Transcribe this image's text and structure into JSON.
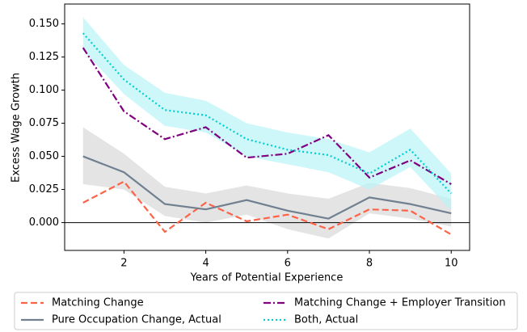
{
  "chart_data": {
    "type": "line",
    "xlabel": "Years of Potential Experience",
    "ylabel": "Excess Wage Growth",
    "x": [
      1,
      2,
      3,
      4,
      5,
      6,
      7,
      8,
      9,
      10
    ],
    "xlim": [
      0.55,
      10.45
    ],
    "xticks": [
      2,
      4,
      6,
      8,
      10
    ],
    "ylim": [
      -0.021,
      0.165
    ],
    "yticks": [
      {
        "value": 0,
        "label": "0.000"
      },
      {
        "value": 0.025,
        "label": "0.025"
      },
      {
        "value": 0.05,
        "label": "0.050"
      },
      {
        "value": 0.075,
        "label": "0.075"
      },
      {
        "value": 0.1,
        "label": "0.100"
      },
      {
        "value": 0.125,
        "label": "0.125"
      },
      {
        "value": 0.15,
        "label": "0.150"
      }
    ],
    "hline": 0,
    "legend": "below",
    "series": [
      {
        "name": "Matching Change",
        "color": "#ff6347",
        "dash": "dashed",
        "values": [
          0.015,
          0.031,
          -0.007,
          0.015,
          0.001,
          0.006,
          -0.005,
          0.01,
          0.009,
          -0.009
        ]
      },
      {
        "name": "Pure Occupation Change, Actual",
        "color": "#708090",
        "dash": "solid",
        "band_color": "#d9d9d9",
        "values": [
          0.05,
          0.038,
          0.014,
          0.01,
          0.017,
          0.009,
          0.003,
          0.019,
          0.014,
          0.007
        ],
        "lower": [
          0.029,
          0.025,
          0.005,
          0.0,
          0.006,
          -0.005,
          -0.012,
          0.007,
          0.003,
          -0.003
        ],
        "upper": [
          0.072,
          0.052,
          0.027,
          0.022,
          0.028,
          0.022,
          0.018,
          0.03,
          0.026,
          0.018
        ]
      },
      {
        "name": "Matching Change + Employer Transition",
        "color": "#800080",
        "dash": "dashdot",
        "values": [
          0.132,
          0.084,
          0.063,
          0.072,
          0.049,
          0.052,
          0.066,
          0.034,
          0.047,
          0.029
        ]
      },
      {
        "name": "Both, Actual",
        "color": "#00ced1",
        "dash": "dotted",
        "band_color": "#b8f4f6",
        "values": [
          0.143,
          0.108,
          0.085,
          0.081,
          0.063,
          0.055,
          0.051,
          0.037,
          0.055,
          0.022
        ],
        "lower": [
          0.13,
          0.097,
          0.073,
          0.068,
          0.05,
          0.044,
          0.038,
          0.025,
          0.042,
          0.009
        ],
        "upper": [
          0.155,
          0.119,
          0.098,
          0.092,
          0.075,
          0.068,
          0.063,
          0.053,
          0.071,
          0.037
        ]
      }
    ]
  }
}
